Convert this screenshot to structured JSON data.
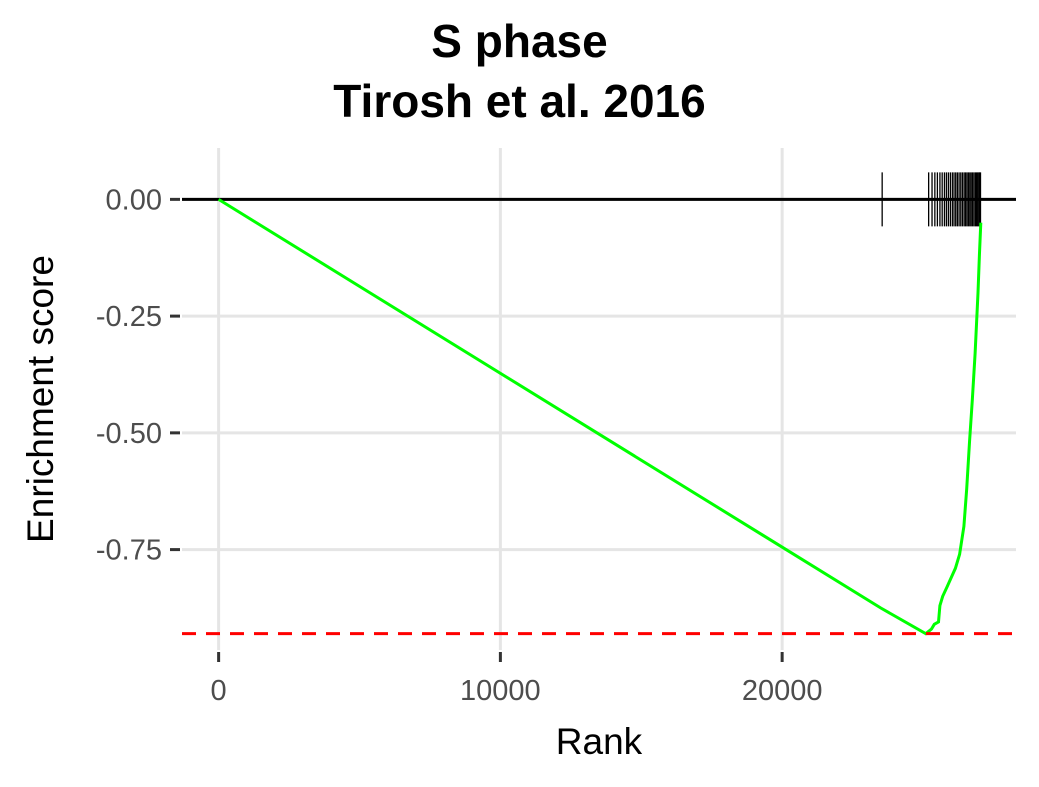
{
  "chart_data": {
    "type": "line",
    "title": [
      "S phase",
      "Tirosh et al. 2016"
    ],
    "xlabel": "Rank",
    "ylabel": "Enrichment score",
    "x_ticks": [
      0,
      10000,
      20000
    ],
    "y_ticks": [
      0.0,
      -0.25,
      -0.5,
      -0.75
    ],
    "x_tick_labels": [
      "0",
      "10000",
      "20000"
    ],
    "y_tick_labels": [
      "0.00",
      "-0.25",
      "-0.50",
      "-0.75"
    ],
    "xlim": [
      -1300,
      28300
    ],
    "ylim": [
      -0.965,
      0.11
    ],
    "grid": true,
    "min_enrichment_score": -0.93,
    "colors": {
      "curve": "#00ff00",
      "min_line": "#ff0000",
      "zero_line": "#000000",
      "hits": "#000000",
      "grid": "#e5e5e5"
    },
    "series": [
      {
        "x": [
          0,
          23500,
          25100,
          25300,
          25400,
          25550,
          25600,
          25700,
          25850,
          26000,
          26150,
          26300,
          26450,
          26550,
          26650,
          26750,
          26850,
          26950,
          27000,
          27050
        ],
        "y": [
          0.0,
          -0.875,
          -0.93,
          -0.92,
          -0.91,
          -0.905,
          -0.87,
          -0.85,
          -0.83,
          -0.81,
          -0.79,
          -0.76,
          -0.7,
          -0.62,
          -0.52,
          -0.43,
          -0.33,
          -0.2,
          -0.12,
          -0.05
        ]
      }
    ],
    "hit_ranks": [
      23550,
      25200,
      25320,
      25420,
      25510,
      25600,
      25680,
      25760,
      25830,
      25900,
      25970,
      26040,
      26100,
      26160,
      26220,
      26280,
      26340,
      26400,
      26460,
      26510,
      26560,
      26610,
      26660,
      26710,
      26760,
      26810,
      26860,
      26900,
      26940,
      26980,
      27010,
      27040
    ]
  }
}
